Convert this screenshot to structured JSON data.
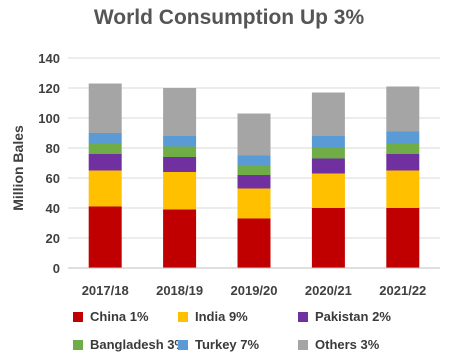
{
  "chart_data": {
    "type": "bar",
    "stacked": true,
    "title": "World Consumption Up 3%",
    "xlabel": "",
    "ylabel": "Million Bales",
    "ylim": [
      0,
      140
    ],
    "yticks": [
      0,
      20,
      40,
      60,
      80,
      100,
      120,
      140
    ],
    "grid": true,
    "legend_position": "bottom",
    "categories": [
      "2017/18",
      "2018/19",
      "2019/20",
      "2020/21",
      "2021/22"
    ],
    "series": [
      {
        "name": "China 1%",
        "color": "#c00000",
        "values": [
          41,
          39,
          33,
          40,
          40
        ]
      },
      {
        "name": "India 9%",
        "color": "#ffc000",
        "values": [
          24,
          25,
          20,
          23,
          25
        ]
      },
      {
        "name": "Pakistan 2%",
        "color": "#7030a0",
        "values": [
          11,
          10,
          9,
          10,
          11
        ]
      },
      {
        "name": "Bangladesh 3%",
        "color": "#70ad47",
        "values": [
          7,
          7,
          6,
          7,
          7
        ]
      },
      {
        "name": "Turkey 7%",
        "color": "#5b9bd5",
        "values": [
          7,
          7,
          7,
          8,
          8
        ]
      },
      {
        "name": "Others 3%",
        "color": "#a5a5a5",
        "values": [
          33,
          32,
          28,
          29,
          30
        ]
      }
    ]
  }
}
